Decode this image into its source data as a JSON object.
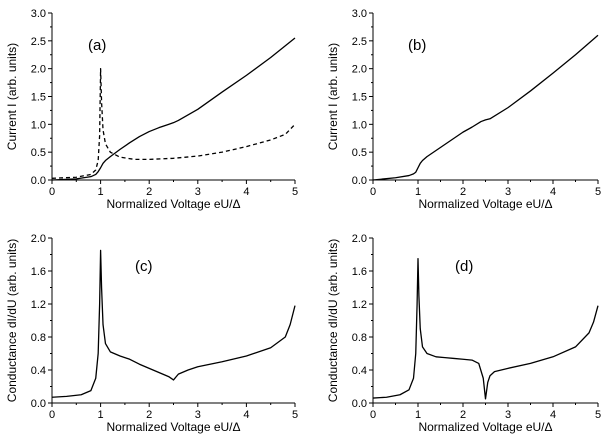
{
  "chart_data": [
    {
      "id": "a",
      "type": "line",
      "panel_label": "(a)",
      "xlabel": "Normalized Voltage eU/Δ",
      "ylabel": "Current I (arb. units)",
      "xlim": [
        0,
        5
      ],
      "ylim": [
        0,
        3
      ],
      "xticks": [
        "0",
        "1",
        "2",
        "3",
        "4",
        "5"
      ],
      "yticks": [
        "0.0",
        "0.5",
        "1.0",
        "1.5",
        "2.0",
        "2.5",
        "3.0"
      ],
      "ytick_values": [
        0,
        0.5,
        1.0,
        1.5,
        2.0,
        2.5,
        3.0
      ],
      "series": [
        {
          "style": "solid",
          "x": [
            0,
            0.5,
            0.8,
            0.9,
            0.95,
            1.0,
            1.05,
            1.1,
            1.2,
            1.4,
            1.6,
            1.8,
            2.0,
            2.2,
            2.4,
            2.5,
            2.6,
            3.0,
            3.5,
            4.0,
            4.5,
            5.0
          ],
          "y": [
            0.0,
            0.02,
            0.06,
            0.1,
            0.15,
            0.22,
            0.3,
            0.35,
            0.42,
            0.55,
            0.67,
            0.78,
            0.87,
            0.94,
            1.0,
            1.03,
            1.07,
            1.27,
            1.58,
            1.88,
            2.2,
            2.55
          ]
        },
        {
          "style": "dashed",
          "x": [
            0,
            0.5,
            0.8,
            0.9,
            0.95,
            0.98,
            1.0,
            1.02,
            1.05,
            1.1,
            1.2,
            1.4,
            1.7,
            2.0,
            2.5,
            3.0,
            3.5,
            4.0,
            4.5,
            4.8,
            5.0
          ],
          "y": [
            0.03,
            0.05,
            0.1,
            0.18,
            0.35,
            0.8,
            2.0,
            1.4,
            0.9,
            0.65,
            0.5,
            0.41,
            0.37,
            0.37,
            0.39,
            0.43,
            0.5,
            0.6,
            0.72,
            0.82,
            1.0
          ]
        }
      ]
    },
    {
      "id": "b",
      "type": "line",
      "panel_label": "(b)",
      "xlabel": "Normalized Voltage eU/Δ",
      "ylabel": "Current I (arb. units)",
      "xlim": [
        0,
        5
      ],
      "ylim": [
        0,
        3
      ],
      "xticks": [
        "0",
        "1",
        "2",
        "3",
        "4",
        "5"
      ],
      "yticks": [
        "0.0",
        "0.5",
        "1.0",
        "1.5",
        "2.0",
        "2.5",
        "3.0"
      ],
      "ytick_values": [
        0,
        0.5,
        1.0,
        1.5,
        2.0,
        2.5,
        3.0
      ],
      "series": [
        {
          "style": "solid",
          "x": [
            0,
            0.5,
            0.8,
            0.9,
            0.95,
            1.0,
            1.05,
            1.1,
            1.2,
            1.4,
            1.6,
            1.8,
            2.0,
            2.2,
            2.4,
            2.5,
            2.6,
            3.0,
            3.5,
            4.0,
            4.5,
            5.0
          ],
          "y": [
            0.0,
            0.04,
            0.08,
            0.11,
            0.14,
            0.22,
            0.3,
            0.35,
            0.42,
            0.53,
            0.64,
            0.75,
            0.86,
            0.95,
            1.05,
            1.08,
            1.1,
            1.3,
            1.6,
            1.92,
            2.25,
            2.6
          ]
        }
      ]
    },
    {
      "id": "c",
      "type": "line",
      "panel_label": "(c)",
      "xlabel": "Normalized Voltage eU/Δ",
      "ylabel": "Conductance dI/dU (arb. units)",
      "xlim": [
        0,
        5
      ],
      "ylim": [
        0,
        2.0
      ],
      "xticks": [
        "0",
        "1",
        "2",
        "3",
        "4",
        "5"
      ],
      "yticks": [
        "0.0",
        "0.4",
        "0.8",
        "1.2",
        "1.6",
        "2.0"
      ],
      "ytick_values": [
        0,
        0.4,
        0.8,
        1.2,
        1.6,
        2.0
      ],
      "series": [
        {
          "style": "solid",
          "x": [
            0,
            0.3,
            0.6,
            0.8,
            0.9,
            0.95,
            0.98,
            1.0,
            1.02,
            1.05,
            1.1,
            1.2,
            1.4,
            1.6,
            1.8,
            2.0,
            2.2,
            2.4,
            2.5,
            2.6,
            2.8,
            3.0,
            3.5,
            4.0,
            4.5,
            4.8,
            4.9,
            5.0
          ],
          "y": [
            0.07,
            0.08,
            0.1,
            0.15,
            0.3,
            0.6,
            1.2,
            1.85,
            1.4,
            0.95,
            0.72,
            0.62,
            0.57,
            0.53,
            0.47,
            0.42,
            0.37,
            0.32,
            0.28,
            0.35,
            0.4,
            0.44,
            0.5,
            0.57,
            0.67,
            0.8,
            0.95,
            1.18
          ]
        }
      ]
    },
    {
      "id": "d",
      "type": "line",
      "panel_label": "(d)",
      "xlabel": "Normalized Voltage eU/Δ",
      "ylabel": "Conductance dI/dU (arb. units)",
      "xlim": [
        0,
        5
      ],
      "ylim": [
        0,
        2.0
      ],
      "xticks": [
        "0",
        "1",
        "2",
        "3",
        "4",
        "5"
      ],
      "yticks": [
        "0.0",
        "0.4",
        "0.8",
        "1.2",
        "1.6",
        "2.0"
      ],
      "ytick_values": [
        0,
        0.4,
        0.8,
        1.2,
        1.6,
        2.0
      ],
      "series": [
        {
          "style": "solid",
          "x": [
            0,
            0.3,
            0.6,
            0.8,
            0.9,
            0.95,
            0.98,
            1.0,
            1.02,
            1.05,
            1.1,
            1.2,
            1.4,
            1.6,
            1.8,
            2.0,
            2.2,
            2.35,
            2.45,
            2.5,
            2.55,
            2.6,
            2.7,
            3.0,
            3.5,
            4.0,
            4.5,
            4.8,
            4.9,
            5.0
          ],
          "y": [
            0.06,
            0.07,
            0.1,
            0.16,
            0.3,
            0.6,
            1.2,
            1.75,
            1.3,
            0.9,
            0.68,
            0.6,
            0.56,
            0.55,
            0.54,
            0.53,
            0.52,
            0.48,
            0.3,
            0.05,
            0.25,
            0.33,
            0.38,
            0.42,
            0.48,
            0.56,
            0.68,
            0.85,
            0.98,
            1.18
          ]
        }
      ]
    }
  ]
}
